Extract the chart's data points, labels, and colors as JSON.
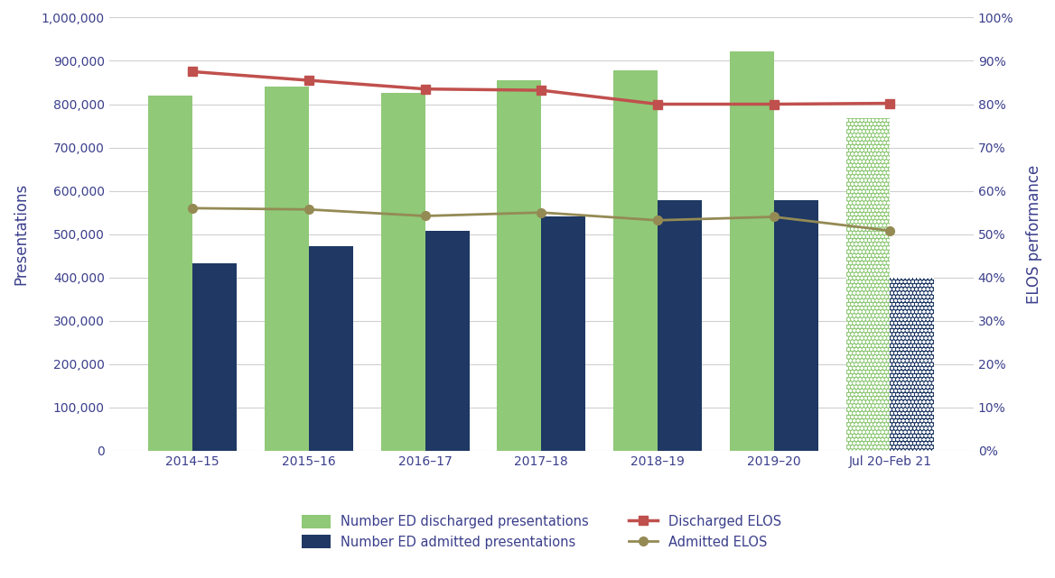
{
  "categories": [
    "2014–15",
    "2015–16",
    "2016–17",
    "2017–18",
    "2018–19",
    "2019–20",
    "Jul 20–Feb 21"
  ],
  "discharged_bars": [
    820000,
    840000,
    825000,
    855000,
    878000,
    922000,
    768000
  ],
  "admitted_bars": [
    433000,
    473000,
    508000,
    540000,
    578000,
    578000,
    400000
  ],
  "discharged_elos": [
    0.875,
    0.855,
    0.835,
    0.832,
    0.8,
    0.8,
    0.802
  ],
  "admitted_elos": [
    0.56,
    0.557,
    0.542,
    0.55,
    0.532,
    0.54,
    0.508
  ],
  "discharged_bar_color": "#90C978",
  "admitted_bar_color": "#1F3864",
  "discharged_elos_color": "#C0504D",
  "admitted_elos_color": "#948A54",
  "axis_label_color": "#3B3F8C",
  "tick_label_color": "#3B3F8C",
  "ylabel_left": "Presentations",
  "ylabel_right": "ELOS performance",
  "ylim_left": [
    0,
    1000000
  ],
  "ylim_right": [
    0,
    1.0
  ],
  "yticks_left": [
    0,
    100000,
    200000,
    300000,
    400000,
    500000,
    600000,
    700000,
    800000,
    900000,
    1000000
  ],
  "yticks_right": [
    0.0,
    0.1,
    0.2,
    0.3,
    0.4,
    0.5,
    0.6,
    0.7,
    0.8,
    0.9,
    1.0
  ],
  "legend_discharged_bar": "Number ED discharged presentations",
  "legend_admitted_bar": "Number ED admitted presentations",
  "legend_discharged_elos": "Discharged ELOS",
  "legend_admitted_elos": "Admitted ELOS",
  "background_color": "#FFFFFF",
  "grid_color": "#D0D0D0",
  "bar_width": 0.38
}
